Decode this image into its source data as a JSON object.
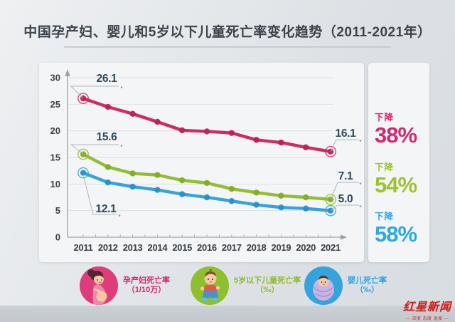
{
  "title": "中国孕产妇、婴儿和5岁以下儿童死亡率变化趋势（2011-2021年）",
  "chart_data": {
    "type": "line",
    "title": "中国孕产妇、婴儿和5岁以下儿童死亡率变化趋势（2011-2021年）",
    "x": [
      2011,
      2012,
      2013,
      2014,
      2015,
      2016,
      2017,
      2018,
      2019,
      2020,
      2021
    ],
    "ylim": [
      0,
      30
    ],
    "y_ticks": [
      0,
      5,
      10,
      15,
      20,
      25,
      30
    ],
    "grid": true,
    "series": [
      {
        "key": "maternal",
        "name": "孕产妇死亡率（1/10万）",
        "color": "#ce2c66",
        "dot_color": "#bf2058",
        "accent": "#d6256f",
        "values": [
          26.1,
          24.5,
          23.2,
          21.7,
          20.1,
          19.9,
          19.6,
          18.3,
          17.8,
          16.9,
          16.1
        ],
        "first_label": "26.1",
        "last_label": "16.1",
        "decline": {
          "label": "下降",
          "value": "38%"
        }
      },
      {
        "key": "under5",
        "name": "5岁以下儿童死亡率（‰）",
        "color": "#93bd33",
        "dot_color": "#82ad24",
        "accent": "#9cc32c",
        "values": [
          15.6,
          13.2,
          12.0,
          11.7,
          10.7,
          10.2,
          9.1,
          8.4,
          7.8,
          7.5,
          7.1
        ],
        "first_label": "15.6",
        "last_label": "7.1",
        "decline": {
          "label": "下降",
          "value": "54%"
        }
      },
      {
        "key": "infant",
        "name": "婴儿死亡率（‰）",
        "color": "#36a3dc",
        "dot_color": "#2492cc",
        "accent": "#2ea8e1",
        "values": [
          12.1,
          10.3,
          9.5,
          8.9,
          8.1,
          7.5,
          6.8,
          6.1,
          5.6,
          5.4,
          5.0
        ],
        "first_label": "12.1",
        "last_label": "5.0",
        "decline": {
          "label": "下降",
          "value": "58%"
        }
      }
    ]
  },
  "legend": [
    {
      "key": "maternal",
      "icon": "pregnant-woman-icon",
      "line1": "孕产妇死亡率",
      "line2": "（1/10万）",
      "color": "#d6246e",
      "circle_color": "#df3d79"
    },
    {
      "key": "under5",
      "icon": "toddler-icon",
      "line1": "5岁以下儿童死亡率",
      "line2": "（‰）",
      "color": "#8bbb2c",
      "circle_color": "#8dbf2f"
    },
    {
      "key": "infant",
      "icon": "baby-icon",
      "line1": "婴儿死亡率",
      "line2": "（‰）",
      "color": "#2fa3dd",
      "circle_color": "#35a3dc"
    }
  ],
  "logo": {
    "name": "红星新闻",
    "tagline": "— 深度 态度 温度 —"
  }
}
